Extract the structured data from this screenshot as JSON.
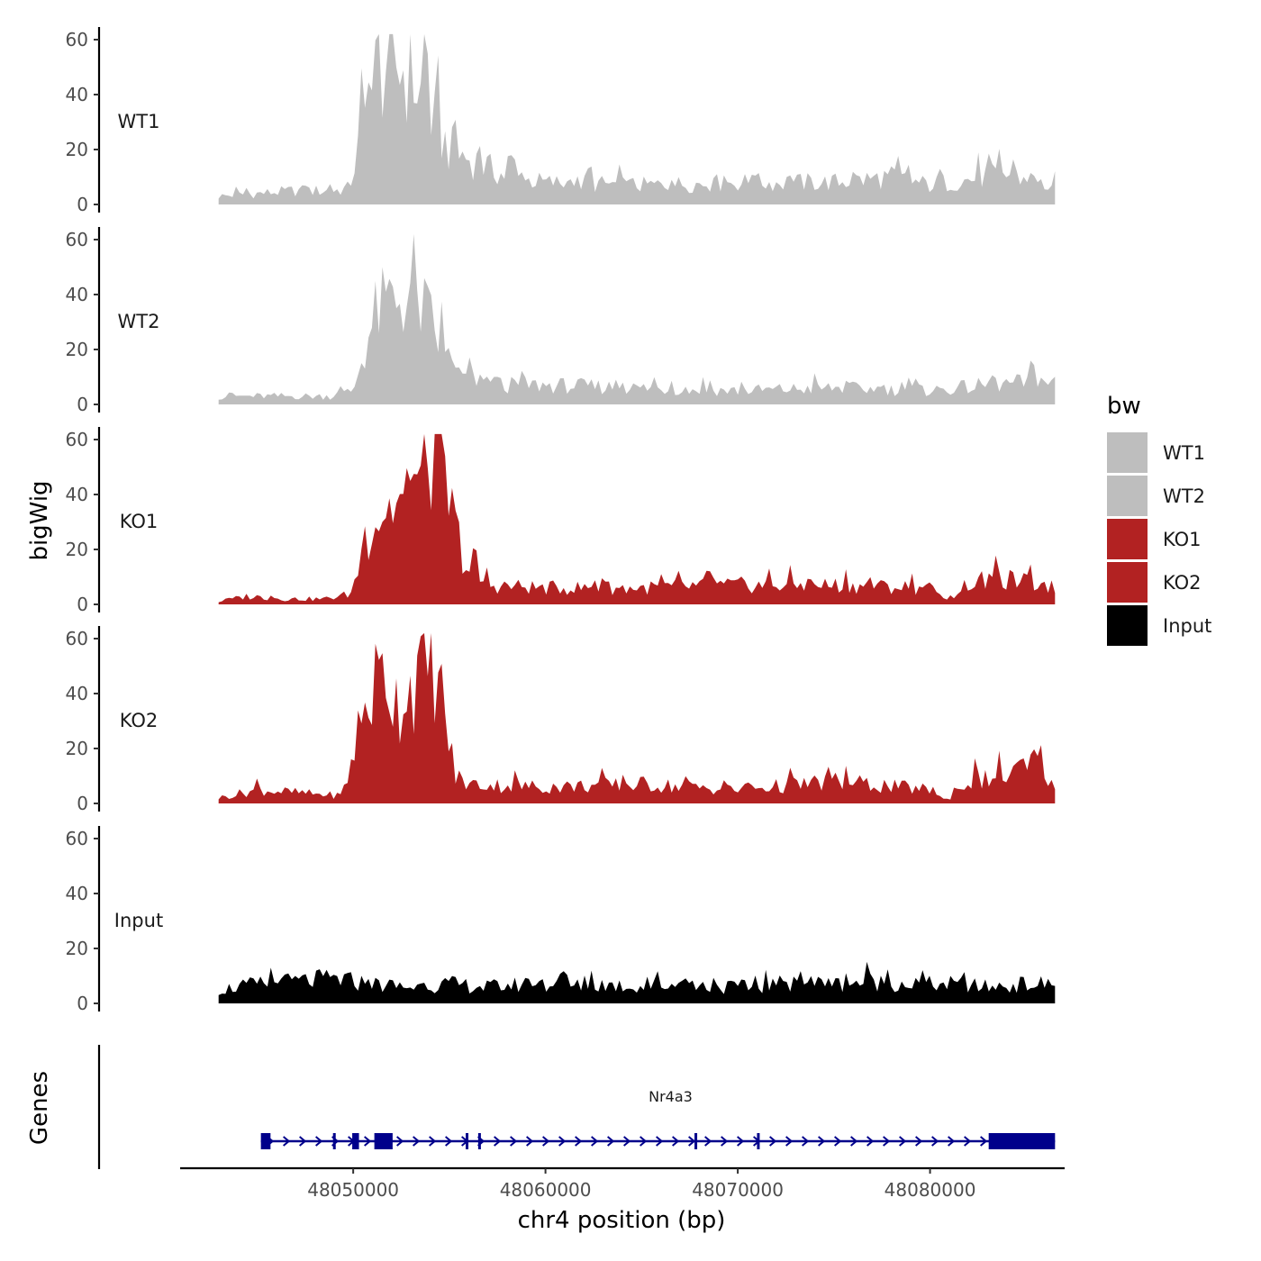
{
  "chart_data": {
    "type": "area",
    "title": "",
    "ylabel": "bigWig",
    "xlabel": "chr4 position (bp)",
    "genes_label": "Genes",
    "xlim": [
      48041000,
      48087000
    ],
    "data_xrange": [
      48043000,
      48086500
    ],
    "xticks": [
      48050000,
      48060000,
      48070000,
      48080000
    ],
    "xtick_labels": [
      "48050000",
      "48060000",
      "48070000",
      "48080000"
    ],
    "ylim": [
      0,
      65
    ],
    "yticks": [
      0,
      20,
      40,
      60
    ],
    "ytick_labels": [
      "0",
      "20",
      "40",
      "60"
    ],
    "legend": {
      "title": "bw",
      "position": "right",
      "entries": [
        {
          "label": "WT1",
          "color": "#bebebe"
        },
        {
          "label": "WT2",
          "color": "#bebebe"
        },
        {
          "label": "KO1",
          "color": "#b22222"
        },
        {
          "label": "KO2",
          "color": "#b22222"
        },
        {
          "label": "Input",
          "color": "#000000"
        }
      ]
    },
    "series": [
      {
        "name": "WT1",
        "color": "#bebebe",
        "x": [
          48043000,
          48045000,
          48047000,
          48049000,
          48049800,
          48050500,
          48051200,
          48051800,
          48052500,
          48053200,
          48054000,
          48055000,
          48056500,
          48058000,
          48060000,
          48065000,
          48070000,
          48075000,
          48078000,
          48080000,
          48082000,
          48084000,
          48086500
        ],
        "values": [
          3,
          4,
          5,
          5,
          6,
          28,
          48,
          52,
          50,
          45,
          32,
          20,
          15,
          10,
          8,
          7,
          8,
          8,
          10,
          7,
          9,
          11,
          6
        ]
      },
      {
        "name": "WT2",
        "color": "#bebebe",
        "x": [
          48043000,
          48045000,
          48047000,
          48049000,
          48050000,
          48050500,
          48051200,
          48052000,
          48052800,
          48053500,
          48054200,
          48055000,
          48056500,
          48058000,
          48060000,
          48065000,
          48070000,
          48075000,
          48080000,
          48083000,
          48085000,
          48086500
        ],
        "values": [
          3,
          3,
          3,
          3,
          5,
          18,
          33,
          38,
          40,
          36,
          28,
          12,
          8,
          7,
          7,
          6,
          5,
          6,
          5,
          7,
          8,
          8
        ]
      },
      {
        "name": "KO1",
        "color": "#b22222",
        "x": [
          48043000,
          48044500,
          48046500,
          48048500,
          48050000,
          48050700,
          48051500,
          48052500,
          48053200,
          48053700,
          48054200,
          48054700,
          48055300,
          48056000,
          48057000,
          48060000,
          48065000,
          48070000,
          48075000,
          48080000,
          48080800,
          48082000,
          48084000,
          48086500
        ],
        "values": [
          1,
          3,
          2,
          2,
          4,
          26,
          34,
          37,
          38,
          56,
          58,
          45,
          28,
          12,
          7,
          6,
          6,
          7,
          7,
          6,
          1,
          8,
          9,
          6
        ]
      },
      {
        "name": "KO2",
        "color": "#b22222",
        "x": [
          48043000,
          48045000,
          48047000,
          48049000,
          48049500,
          48050300,
          48051000,
          48051700,
          48052300,
          48053000,
          48053700,
          48054200,
          48054700,
          48055300,
          48056000,
          48060000,
          48065000,
          48070000,
          48075000,
          48080000,
          48080800,
          48082000,
          48084000,
          48085800,
          48086500
        ],
        "values": [
          2,
          5,
          4,
          3,
          3,
          28,
          42,
          48,
          36,
          44,
          48,
          52,
          35,
          10,
          7,
          6,
          7,
          5,
          8,
          5,
          1,
          8,
          10,
          16,
          4
        ]
      },
      {
        "name": "Input",
        "color": "#000000",
        "x": [
          48043000,
          48045000,
          48047000,
          48049000,
          48051000,
          48053000,
          48055000,
          48057000,
          48059000,
          48061000,
          48063000,
          48065000,
          48067000,
          48069000,
          48071000,
          48073000,
          48075000,
          48077000,
          48079000,
          48081000,
          48083000,
          48085000,
          48086500
        ],
        "values": [
          5,
          7,
          8,
          9,
          7,
          6,
          7,
          6,
          7,
          6,
          7,
          6,
          7,
          6,
          6,
          8,
          7,
          8,
          7,
          7,
          6,
          7,
          7
        ]
      }
    ],
    "genes": [
      {
        "name": "Nr4a3",
        "start": 48045200,
        "end": 48086500,
        "strand": "+",
        "color": "#00008b",
        "exons": [
          [
            48045200,
            48045700
          ],
          [
            48048950,
            48049050
          ],
          [
            48049950,
            48050300
          ],
          [
            48051100,
            48052050
          ],
          [
            48055850,
            48055950
          ],
          [
            48056500,
            48056600
          ],
          [
            48067750,
            48067850
          ],
          [
            48071000,
            48071100
          ],
          [
            48083050,
            48086500
          ]
        ]
      }
    ]
  }
}
